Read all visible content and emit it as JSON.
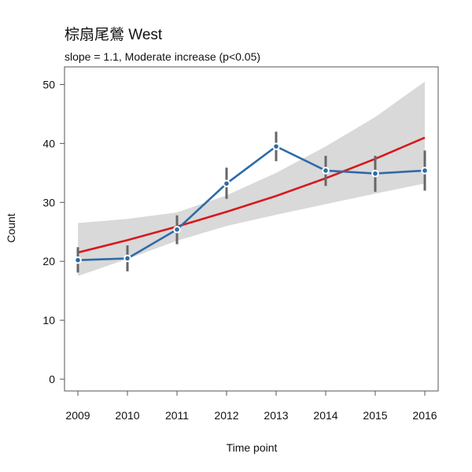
{
  "chart_data": {
    "type": "line",
    "title": "棕扇尾鶯 West",
    "subtitle": "slope = 1.1, Moderate increase (p<0.05)",
    "xlabel": "Time point",
    "ylabel": "Count",
    "categories": [
      "2009",
      "2010",
      "2011",
      "2012",
      "2013",
      "2014",
      "2015",
      "2016"
    ],
    "yticks": [
      0,
      10,
      20,
      30,
      40,
      50
    ],
    "ylim": [
      -2,
      53
    ],
    "grid": false,
    "series": [
      {
        "kind": "observed",
        "values": [
          20.2,
          20.5,
          25.4,
          33.2,
          39.5,
          35.4,
          34.9,
          35.4
        ],
        "error_low": [
          18.1,
          18.3,
          22.9,
          30.6,
          37.0,
          32.8,
          31.8,
          32.0
        ],
        "error_high": [
          22.4,
          22.7,
          27.8,
          35.9,
          42.0,
          37.9,
          37.9,
          38.8
        ],
        "color": "#2f6aa8"
      },
      {
        "kind": "trend",
        "values": [
          21.5,
          23.6,
          25.9,
          28.4,
          31.1,
          34.1,
          37.4,
          41.0
        ],
        "ci_low": [
          17.5,
          20.4,
          23.5,
          26.0,
          27.9,
          29.7,
          31.5,
          33.2
        ],
        "ci_high": [
          26.5,
          27.2,
          28.3,
          31.2,
          35.0,
          39.5,
          44.5,
          50.5
        ],
        "color": "#d7191c",
        "band_color": "#d9d9d9"
      }
    ]
  }
}
